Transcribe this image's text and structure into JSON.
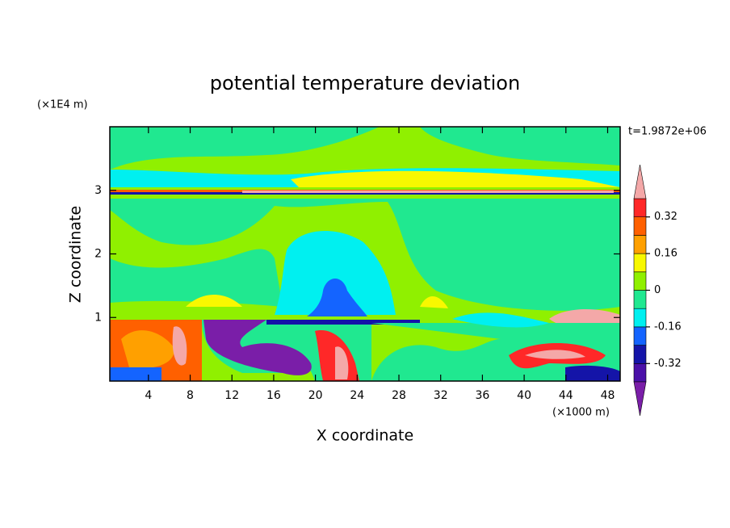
{
  "chart_data": {
    "type": "contour",
    "title": "potential temperature deviation",
    "x_label": "X coordinate",
    "y_label": "Z coordinate",
    "x_unit_label": "(×1000 m)",
    "y_unit_label": "(×1E4 m)",
    "time_label": "t=1.9872e+06",
    "xlim": [
      0.3,
      49.2
    ],
    "xticks": [
      4,
      8,
      12,
      16,
      20,
      24,
      28,
      32,
      36,
      40,
      44,
      48
    ],
    "ylim": [
      0,
      4
    ],
    "yticks": [
      1,
      2,
      3
    ],
    "colorbar": {
      "levels": [
        -0.4,
        -0.32,
        -0.24,
        -0.16,
        -0.08,
        0,
        0.08,
        0.16,
        0.24,
        0.32,
        0.4
      ],
      "colors": [
        "#7a1ea8",
        "#4a10a8",
        "#1414a8",
        "#1464ff",
        "#00f0f0",
        "#20e890",
        "#90f000",
        "#f8f800",
        "#ffa000",
        "#ff6000",
        "#ff2828",
        "#f4a8a8"
      ],
      "ticks": [
        -0.32,
        -0.16,
        0,
        0.16,
        0.32
      ]
    }
  }
}
